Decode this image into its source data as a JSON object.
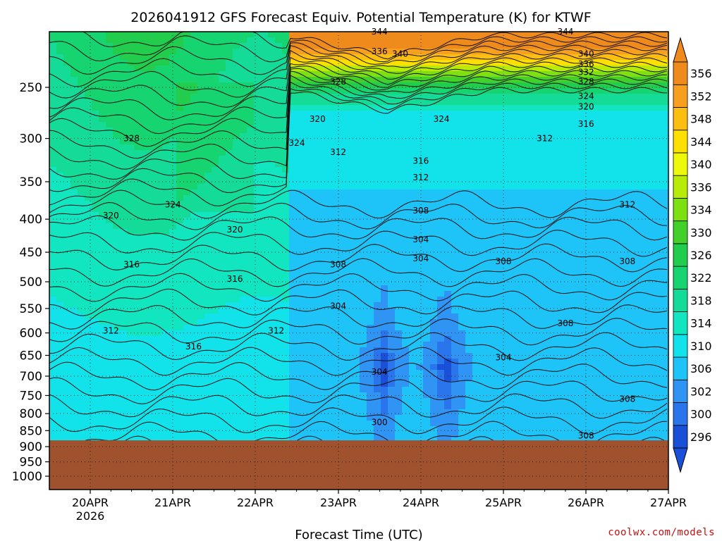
{
  "footer": "coolwx.com/models",
  "chart_data": {
    "type": "heatmap",
    "title": "2026041912 GFS Forecast Equiv. Potential Temperature (K) for KTWF",
    "xlabel": "Forecast Time (UTC)",
    "ylabel": "",
    "x_ticks": [
      "20APR",
      "21APR",
      "22APR",
      "23APR",
      "24APR",
      "25APR",
      "26APR",
      "27APR"
    ],
    "x_year_label": "2026",
    "y_ticks": [
      250,
      300,
      350,
      400,
      450,
      500,
      550,
      600,
      650,
      700,
      750,
      800,
      850,
      900,
      950,
      1000
    ],
    "y_axis": "pressure (hPa), log scale, inverted",
    "grid": true,
    "ground_surface_hpa": 880,
    "colorbar": {
      "levels": [
        296,
        300,
        302,
        306,
        310,
        314,
        318,
        322,
        326,
        330,
        334,
        336,
        340,
        344,
        348,
        352,
        356
      ],
      "colors": [
        "#1a4fd8",
        "#2a74ec",
        "#2f94f4",
        "#1ec4f8",
        "#12e2ea",
        "#12e6c0",
        "#14dc98",
        "#16d470",
        "#22cc4c",
        "#44d02a",
        "#7ee012",
        "#b8ec08",
        "#eef80a",
        "#fde000",
        "#fcbe10",
        "#f7a020",
        "#ef8a1c"
      ]
    },
    "contour_labels": [
      {
        "t": "20APR 12Z",
        "p": 300,
        "v": 328
      },
      {
        "t": "21APR 00Z",
        "p": 380,
        "v": 324
      },
      {
        "t": "20APR 06Z",
        "p": 395,
        "v": 320
      },
      {
        "t": "20APR 12Z",
        "p": 470,
        "v": 316
      },
      {
        "t": "20APR 06Z",
        "p": 595,
        "v": 312
      },
      {
        "t": "21APR 06Z",
        "p": 630,
        "v": 316
      },
      {
        "t": "21APR 18Z",
        "p": 415,
        "v": 320
      },
      {
        "t": "21APR 18Z",
        "p": 495,
        "v": 316
      },
      {
        "t": "22APR 06Z",
        "p": 595,
        "v": 312
      },
      {
        "t": "22APR 12Z",
        "p": 305,
        "v": 324
      },
      {
        "t": "22APR 18Z",
        "p": 280,
        "v": 320
      },
      {
        "t": "23APR 00Z",
        "p": 245,
        "v": 328
      },
      {
        "t": "23APR 12Z",
        "p": 220,
        "v": 336
      },
      {
        "t": "23APR 12Z",
        "p": 205,
        "v": 344
      },
      {
        "t": "23APR 18Z",
        "p": 222,
        "v": 340
      },
      {
        "t": "23APR 00Z",
        "p": 315,
        "v": 312
      },
      {
        "t": "24APR 06Z",
        "p": 280,
        "v": 324
      },
      {
        "t": "24APR 00Z",
        "p": 325,
        "v": 316
      },
      {
        "t": "24APR 00Z",
        "p": 345,
        "v": 312
      },
      {
        "t": "24APR 00Z",
        "p": 388,
        "v": 308
      },
      {
        "t": "24APR 00Z",
        "p": 430,
        "v": 304
      },
      {
        "t": "24APR 00Z",
        "p": 460,
        "v": 304
      },
      {
        "t": "23APR 00Z",
        "p": 470,
        "v": 308
      },
      {
        "t": "23APR 00Z",
        "p": 545,
        "v": 304
      },
      {
        "t": "23APR 12Z",
        "p": 690,
        "v": 304
      },
      {
        "t": "23APR 12Z",
        "p": 825,
        "v": 300
      },
      {
        "t": "25APR 00Z",
        "p": 465,
        "v": 308
      },
      {
        "t": "25APR 00Z",
        "p": 655,
        "v": 304
      },
      {
        "t": "25APR 18Z",
        "p": 580,
        "v": 308
      },
      {
        "t": "26APR 12Z",
        "p": 465,
        "v": 308
      },
      {
        "t": "26APR 12Z",
        "p": 760,
        "v": 308
      },
      {
        "t": "26APR 00Z",
        "p": 865,
        "v": 308
      },
      {
        "t": "26APR 12Z",
        "p": 380,
        "v": 312
      },
      {
        "t": "25APR 12Z",
        "p": 300,
        "v": 312
      },
      {
        "t": "26APR 00Z",
        "p": 285,
        "v": 316
      },
      {
        "t": "26APR 00Z",
        "p": 268,
        "v": 320
      },
      {
        "t": "26APR 00Z",
        "p": 258,
        "v": 324
      },
      {
        "t": "26APR 00Z",
        "p": 245,
        "v": 328
      },
      {
        "t": "26APR 00Z",
        "p": 237,
        "v": 332
      },
      {
        "t": "26APR 00Z",
        "p": 230,
        "v": 336
      },
      {
        "t": "26APR 00Z",
        "p": 222,
        "v": 340
      },
      {
        "t": "25APR 18Z",
        "p": 205,
        "v": 344
      }
    ]
  }
}
